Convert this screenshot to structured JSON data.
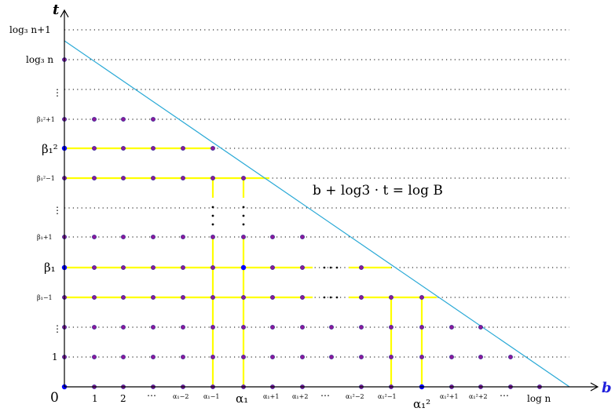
{
  "colors": {
    "axis": "#000000",
    "gridline": "#000000",
    "boundary_line": "#29a9d6",
    "highlight": "#ffff00",
    "point_fill": "#8b1a9a",
    "point_stroke": "#1a1a8c",
    "special_point": "#0000ff",
    "b_label": "#1f1fdc"
  },
  "axes": {
    "x_label": "b",
    "y_label": "t",
    "origin_label": "0"
  },
  "x_ticks": [
    "1",
    "2",
    "⋯",
    "α₁−2",
    "α₁−1",
    "α₁",
    "α₁+1",
    "α₁+2",
    "⋯",
    "α₁²−2",
    "α₁²−1",
    "α₁²",
    "α₁²+1",
    "α₁²+2",
    "⋯",
    "log n"
  ],
  "y_ticks": [
    "1",
    "⋮",
    "β₁−1",
    "β₁",
    "β₁+1",
    "⋮",
    "β₁²−1",
    "β₁²",
    "β₁²+1",
    "⋮",
    "log₃ n",
    "log₃ n+1"
  ],
  "equation": "b + log3 · t = log B",
  "icons": {
    "x_arrow": "arrow-right-icon",
    "y_arrow": "arrow-up-icon"
  }
}
